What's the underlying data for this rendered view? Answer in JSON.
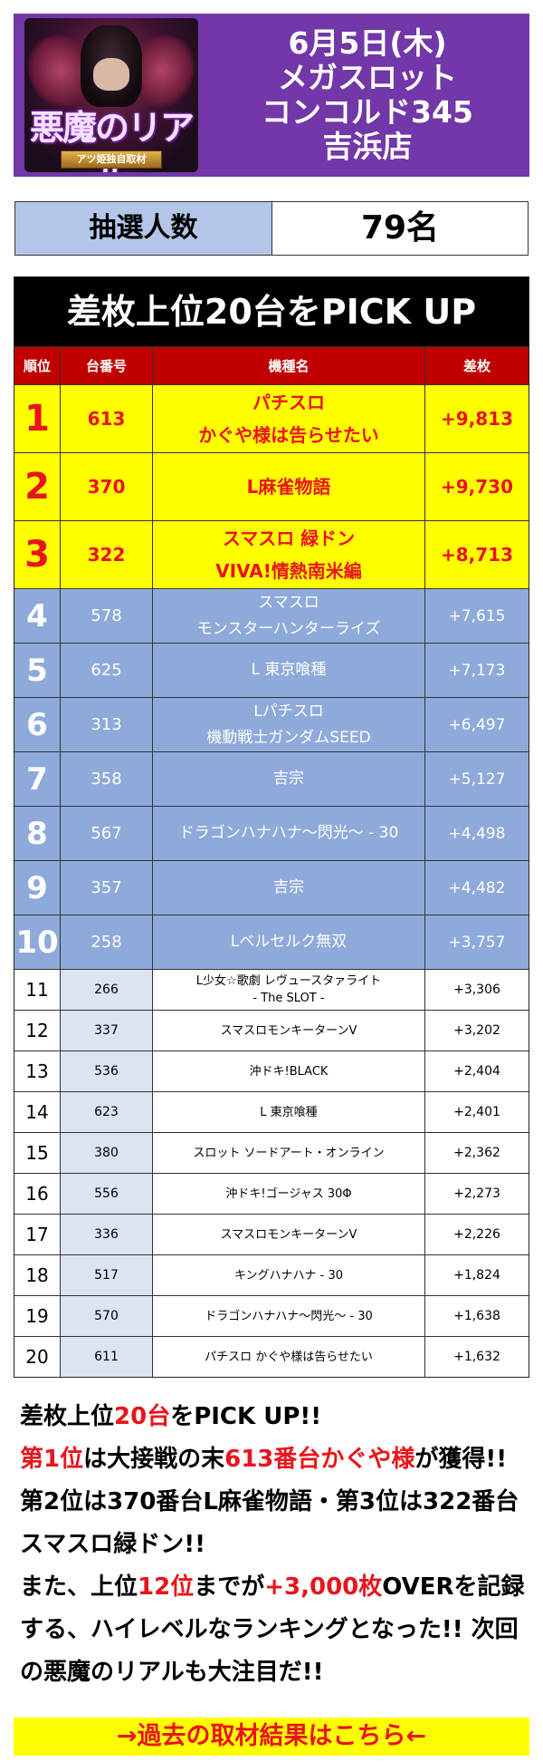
{
  "header": {
    "logo_title": "悪魔のリアル",
    "logo_subtitle": "アツ姫独自取材",
    "title_lines": [
      "6月5日(木)",
      "メガスロット",
      "コンコルド345",
      "吉浜店"
    ]
  },
  "lottery": {
    "label": "抽選人数",
    "value": "79名"
  },
  "ranking": {
    "title": "差枚上位20台をPICK UP",
    "columns": {
      "rank": "順位",
      "number": "台番号",
      "machine": "機種名",
      "diff": "差枚"
    },
    "rows": [
      {
        "rank": "1",
        "number": "613",
        "machine": [
          "パチスロ",
          "かぐや様は告らせたい"
        ],
        "diff": "+9,813"
      },
      {
        "rank": "2",
        "number": "370",
        "machine": [
          "L麻雀物語"
        ],
        "diff": "+9,730"
      },
      {
        "rank": "3",
        "number": "322",
        "machine": [
          "スマスロ 緑ドン",
          "VIVA!情熱南米編"
        ],
        "diff": "+8,713"
      },
      {
        "rank": "4",
        "number": "578",
        "machine": [
          "スマスロ",
          "モンスターハンターライズ"
        ],
        "diff": "+7,615"
      },
      {
        "rank": "5",
        "number": "625",
        "machine": [
          "L 東京喰種"
        ],
        "diff": "+7,173"
      },
      {
        "rank": "6",
        "number": "313",
        "machine": [
          "Lパチスロ",
          "機動戦士ガンダムSEED"
        ],
        "diff": "+6,497"
      },
      {
        "rank": "7",
        "number": "358",
        "machine": [
          "吉宗"
        ],
        "diff": "+5,127"
      },
      {
        "rank": "8",
        "number": "567",
        "machine": [
          "ドラゴンハナハナ〜閃光〜 - 30"
        ],
        "diff": "+4,498"
      },
      {
        "rank": "9",
        "number": "357",
        "machine": [
          "吉宗"
        ],
        "diff": "+4,482"
      },
      {
        "rank": "10",
        "number": "258",
        "machine": [
          "Lベルセルク無双"
        ],
        "diff": "+3,757"
      },
      {
        "rank": "11",
        "number": "266",
        "machine": [
          "L少女☆歌劇 レヴュースタァライト",
          "- The SLOT -"
        ],
        "diff": "+3,306"
      },
      {
        "rank": "12",
        "number": "337",
        "machine": [
          "スマスロモンキーターンV"
        ],
        "diff": "+3,202"
      },
      {
        "rank": "13",
        "number": "536",
        "machine": [
          "沖ドキ!BLACK"
        ],
        "diff": "+2,404"
      },
      {
        "rank": "14",
        "number": "623",
        "machine": [
          "L 東京喰種"
        ],
        "diff": "+2,401"
      },
      {
        "rank": "15",
        "number": "380",
        "machine": [
          "スロット ソードアート・オンライン"
        ],
        "diff": "+2,362"
      },
      {
        "rank": "16",
        "number": "556",
        "machine": [
          "沖ドキ!ゴージャス 30Φ"
        ],
        "diff": "+2,273"
      },
      {
        "rank": "17",
        "number": "336",
        "machine": [
          "スマスロモンキーターンV"
        ],
        "diff": "+2,226"
      },
      {
        "rank": "18",
        "number": "517",
        "machine": [
          "キングハナハナ - 30"
        ],
        "diff": "+1,824"
      },
      {
        "rank": "19",
        "number": "570",
        "machine": [
          "ドラゴンハナハナ〜閃光〜 - 30"
        ],
        "diff": "+1,638"
      },
      {
        "rank": "20",
        "number": "611",
        "machine": [
          "パチスロ かぐや様は告らせたい"
        ],
        "diff": "+1,632"
      }
    ]
  },
  "comment": {
    "segments": [
      {
        "text": "差枚上位",
        "red": false
      },
      {
        "text": "20台",
        "red": true
      },
      {
        "text": "をPICK UP!!",
        "red": false
      },
      {
        "br": true
      },
      {
        "text": "第1位",
        "red": true
      },
      {
        "text": "は大接戦の末",
        "red": false
      },
      {
        "text": "613番台かぐや様",
        "red": true
      },
      {
        "text": "が獲得!! 第2位は370番台L麻雀物語・第3位は322番台スマスロ緑ドン!!",
        "red": false
      },
      {
        "br": true
      },
      {
        "text": "また、上位",
        "red": false
      },
      {
        "text": "12位",
        "red": true
      },
      {
        "text": "までが",
        "red": false
      },
      {
        "text": "+3,000枚",
        "red": true
      },
      {
        "text": "OVERを記録する、ハイレベルなランキングとなった!! 次回の悪魔のリアルも大注目だ!!",
        "red": false
      }
    ]
  },
  "past_results": {
    "label": "→過去の取材結果はこちら←"
  },
  "colors": {
    "header_bg": "#7237a8",
    "top3_bg": "#ffff00",
    "top3_text": "#e8141b",
    "mid_bg": "#8eaadb",
    "table_head_bg": "#c00000",
    "lottery_label_bg": "#b4c6e7"
  }
}
